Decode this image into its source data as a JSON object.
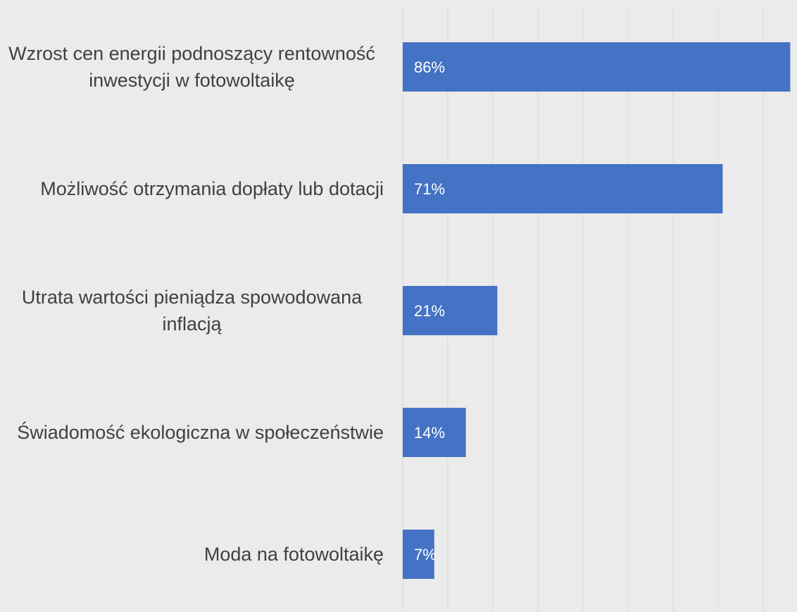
{
  "chart_data": {
    "type": "bar",
    "orientation": "horizontal",
    "categories": [
      "Wzrost cen energii podnoszący rentowność inwestycji w fotowoltaikę",
      "Możliwość otrzymania dopłaty lub dotacji",
      "Utrata wartości pieniądza spowodowana inflacją",
      "Świadomość ekologiczna w społeczeństwie",
      "Moda na fotowoltaikę"
    ],
    "values": [
      86,
      71,
      21,
      14,
      7
    ],
    "value_labels": [
      "86%",
      "71%",
      "21%",
      "14%",
      "7%"
    ],
    "color": "#4472c4",
    "xlim": [
      0,
      87.5
    ],
    "xticks": [
      0,
      10,
      20,
      30,
      40,
      50,
      60,
      70,
      80
    ],
    "grid": true
  }
}
